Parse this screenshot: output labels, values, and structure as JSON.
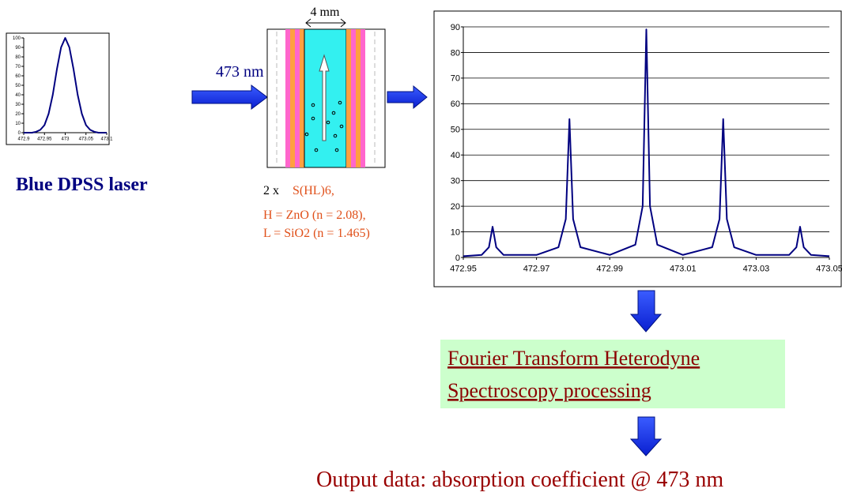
{
  "chart_data": [
    {
      "type": "line",
      "color": "#000080",
      "x": [
        472.9,
        472.91,
        472.92,
        472.93,
        472.94,
        472.95,
        472.96,
        472.97,
        472.98,
        472.99,
        473,
        473.01,
        473.02,
        473.03,
        473.04,
        473.05,
        473.06,
        473.07,
        473.08,
        473.09,
        473.1
      ],
      "values": [
        0,
        0,
        0,
        1,
        3,
        8,
        20,
        40,
        67,
        90,
        100,
        90,
        67,
        40,
        20,
        8,
        3,
        1,
        0,
        0,
        0
      ],
      "xlim": [
        472.9,
        473.1
      ],
      "xticks": [
        472.9,
        472.95,
        473,
        473.05,
        473.1
      ],
      "ylim": [
        0,
        100
      ],
      "yticks": [
        0,
        10,
        20,
        30,
        40,
        50,
        60,
        70,
        80,
        90,
        100
      ],
      "grid": false
    },
    {
      "type": "line",
      "color": "#000080",
      "x": [
        472.95,
        472.955,
        472.957,
        472.958,
        472.959,
        472.961,
        472.97,
        472.976,
        472.978,
        472.979,
        472.98,
        472.982,
        472.99,
        472.997,
        472.999,
        473,
        473.001,
        473.003,
        473.01,
        473.018,
        473.02,
        473.021,
        473.022,
        473.024,
        473.03,
        473.039,
        473.041,
        473.042,
        473.043,
        473.045,
        473.05
      ],
      "values": [
        0.5,
        1,
        4,
        12,
        4,
        1,
        1,
        4,
        15,
        54,
        15,
        4,
        1,
        5,
        20,
        89,
        20,
        5,
        1,
        4,
        15,
        54,
        15,
        4,
        1,
        1,
        4,
        12,
        4,
        1,
        0.5
      ],
      "xlim": [
        472.95,
        473.05
      ],
      "xticks": [
        472.95,
        472.97,
        472.99,
        473.01,
        473.03,
        473.05
      ],
      "ylim": [
        0,
        90
      ],
      "yticks": [
        0,
        10,
        20,
        30,
        40,
        50,
        60,
        70,
        80,
        90
      ],
      "grid": true
    }
  ],
  "labels": {
    "cell_width": "4 mm",
    "wavelength": "473 nm",
    "laser": "Blue DPSS laser",
    "stack_prefix": "2 x",
    "stack": "S(HL)6,",
    "h_layer": "H = ZnO (n = 2.08),",
    "l_layer": "L = SiO2 (n = 1.465)",
    "processing": [
      "Fourier Transform Heterodyne",
      "Spectroscopy processing"
    ],
    "output": "Output data: absorption coefficient @ 473 nm"
  }
}
